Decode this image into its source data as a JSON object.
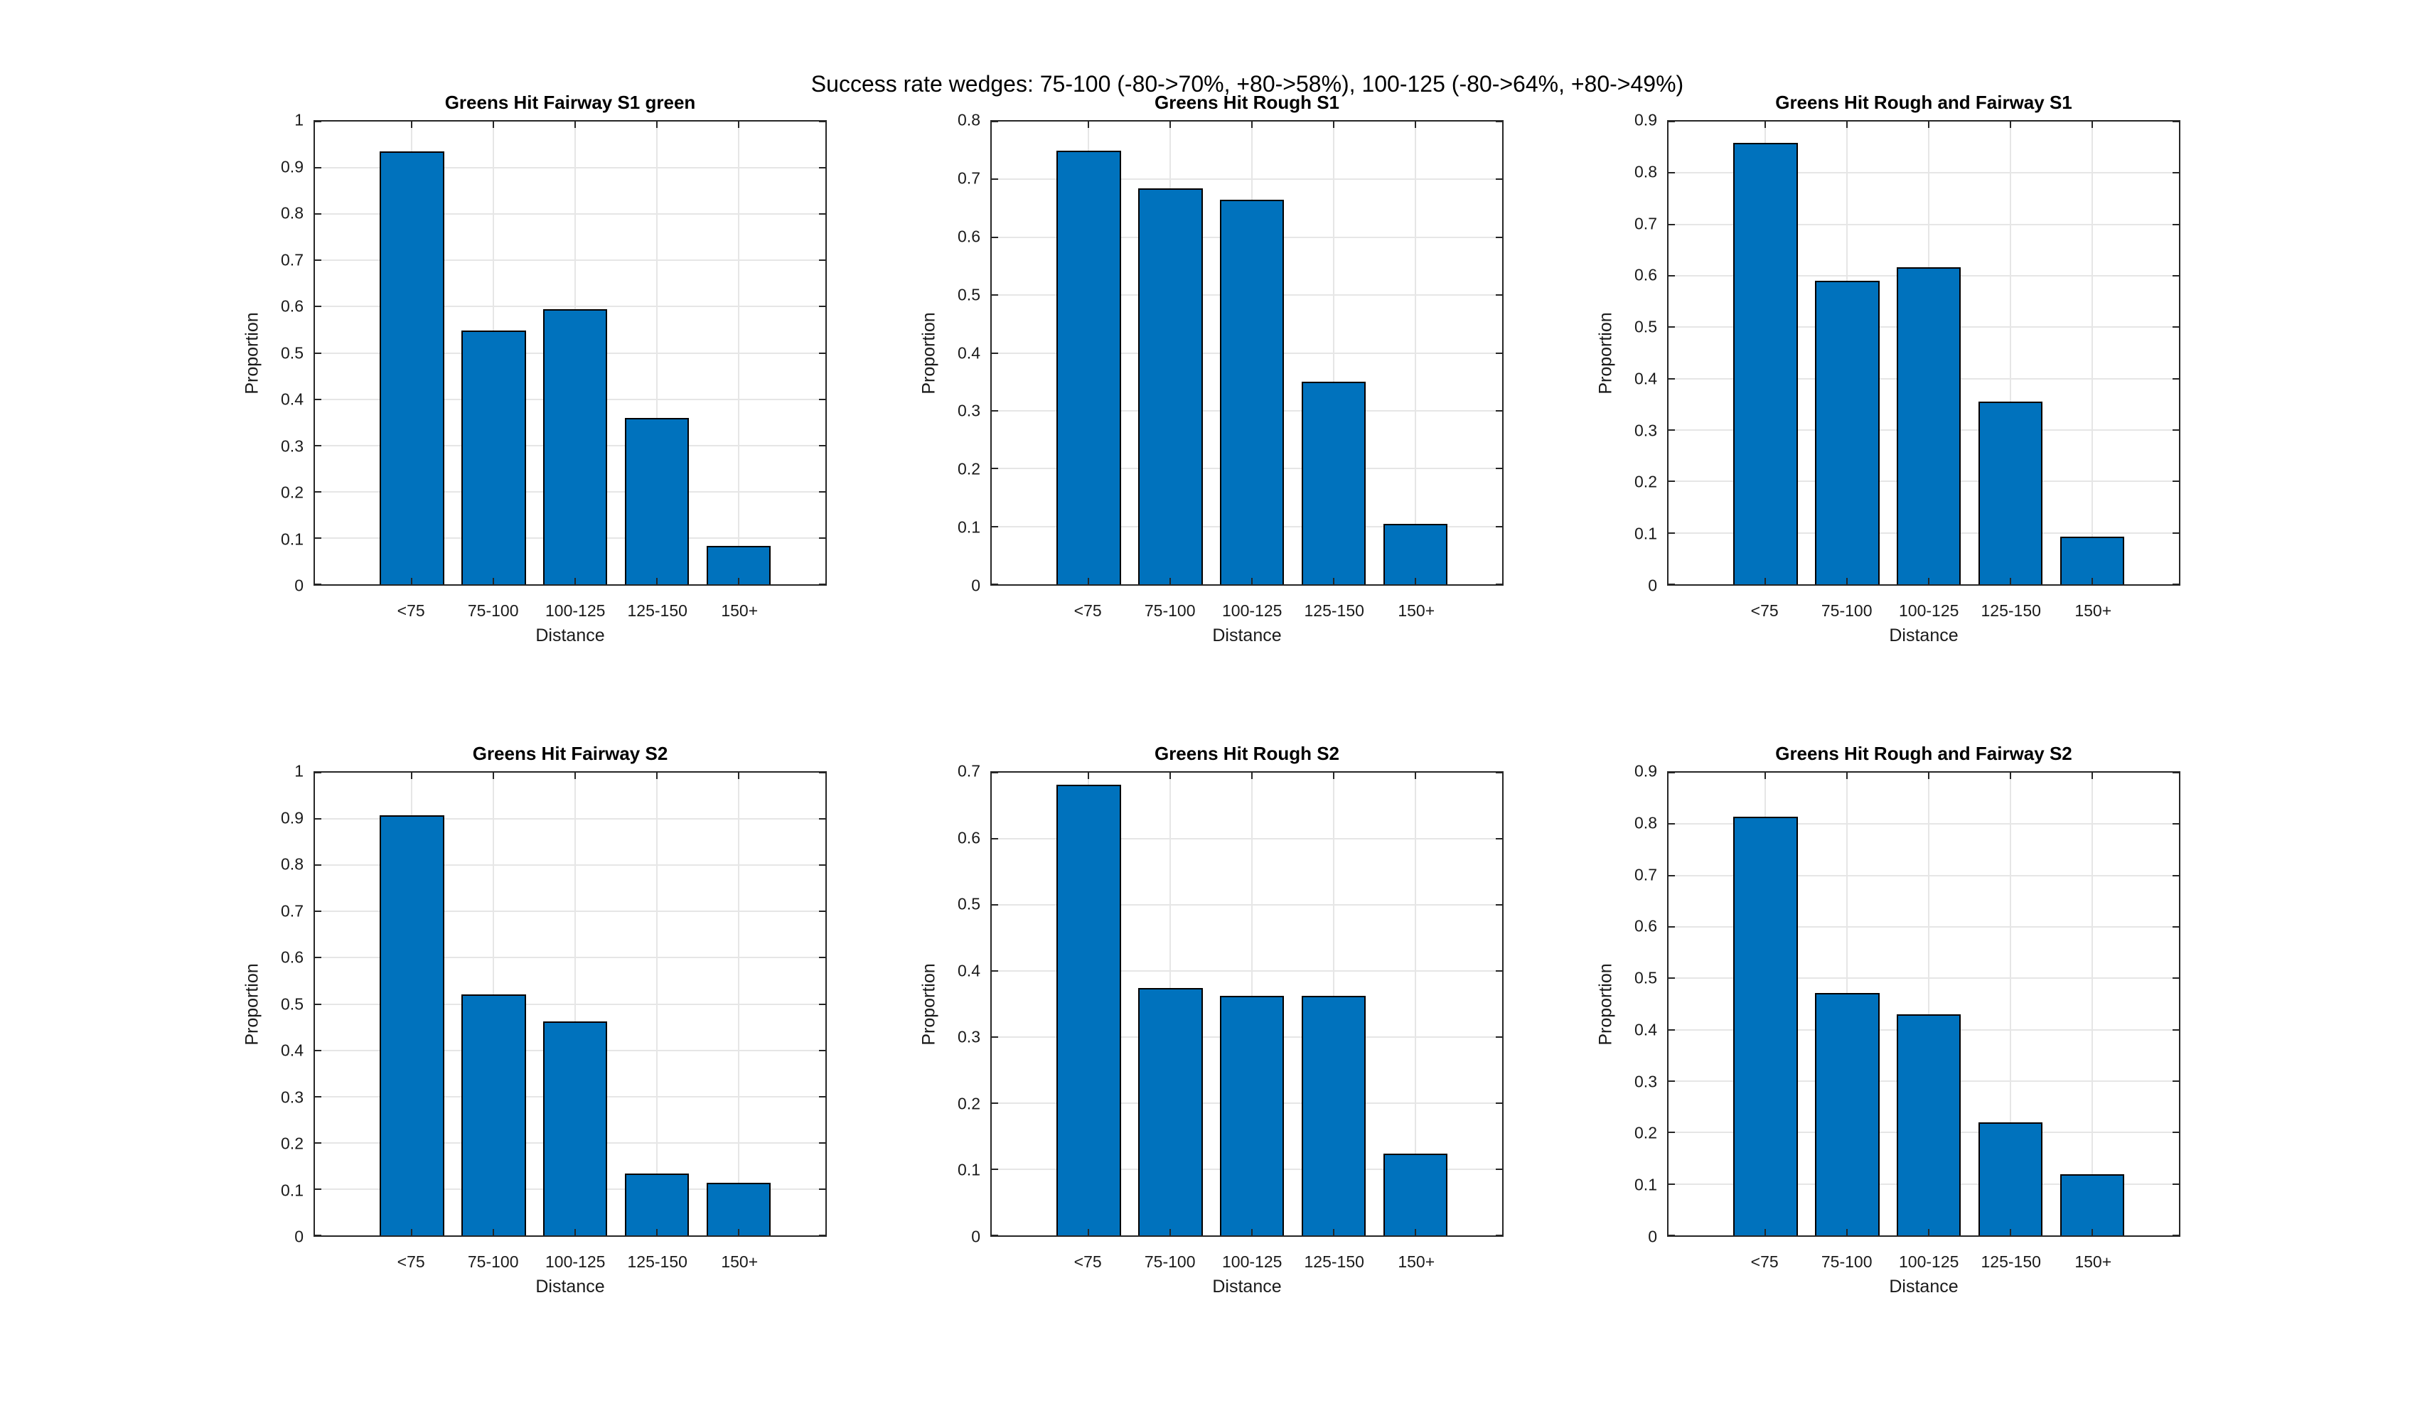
{
  "suptitle": "Success rate wedges: 75-100 (-80->70%, +80->58%), 100-125 (-80->64%, +80->49%)",
  "colors": {
    "bar_fill": "#0072BD",
    "bar_edge": "#000000",
    "grid": "#e6e6e6",
    "axis": "#262626",
    "background": "#ffffff"
  },
  "chart_data": [
    {
      "type": "bar",
      "title": "Greens Hit Fairway S1 green",
      "categories": [
        "<75",
        "75-100",
        "100-125",
        "125-150",
        "150+"
      ],
      "values": [
        0.935,
        0.548,
        0.595,
        0.36,
        0.083
      ],
      "xlabel": "Distance",
      "ylabel": "Proportion",
      "ylim": [
        0,
        1
      ],
      "yticks": [
        "0",
        "0.1",
        "0.2",
        "0.3",
        "0.4",
        "0.5",
        "0.6",
        "0.7",
        "0.8",
        "0.9",
        "1"
      ],
      "grid": "on",
      "legend": "none"
    },
    {
      "type": "bar",
      "title": "Greens Hit Rough S1",
      "categories": [
        "<75",
        "75-100",
        "100-125",
        "125-150",
        "150+"
      ],
      "values": [
        0.75,
        0.684,
        0.665,
        0.35,
        0.104
      ],
      "xlabel": "Distance",
      "ylabel": "Proportion",
      "ylim": [
        0,
        0.8
      ],
      "yticks": [
        "0",
        "0.1",
        "0.2",
        "0.3",
        "0.4",
        "0.5",
        "0.6",
        "0.7",
        "0.8"
      ],
      "grid": "on",
      "legend": "none"
    },
    {
      "type": "bar",
      "title": "Greens Hit Rough and Fairway S1",
      "categories": [
        "<75",
        "75-100",
        "100-125",
        "125-150",
        "150+"
      ],
      "values": [
        0.859,
        0.59,
        0.616,
        0.355,
        0.093
      ],
      "xlabel": "Distance",
      "ylabel": "Proportion",
      "ylim": [
        0,
        0.9
      ],
      "yticks": [
        "0",
        "0.1",
        "0.2",
        "0.3",
        "0.4",
        "0.5",
        "0.6",
        "0.7",
        "0.8",
        "0.9"
      ],
      "grid": "on",
      "legend": "none"
    },
    {
      "type": "bar",
      "title": "Greens Hit Fairway S2",
      "categories": [
        "<75",
        "75-100",
        "100-125",
        "125-150",
        "150+"
      ],
      "values": [
        0.908,
        0.52,
        0.463,
        0.133,
        0.114
      ],
      "xlabel": "Distance",
      "ylabel": "Proportion",
      "ylim": [
        0,
        1
      ],
      "yticks": [
        "0",
        "0.1",
        "0.2",
        "0.3",
        "0.4",
        "0.5",
        "0.6",
        "0.7",
        "0.8",
        "0.9",
        "1"
      ],
      "grid": "on",
      "legend": "none"
    },
    {
      "type": "bar",
      "title": "Greens Hit Rough S2",
      "categories": [
        "<75",
        "75-100",
        "100-125",
        "125-150",
        "150+"
      ],
      "values": [
        0.682,
        0.374,
        0.362,
        0.362,
        0.124
      ],
      "xlabel": "Distance",
      "ylabel": "Proportion",
      "ylim": [
        0,
        0.7
      ],
      "yticks": [
        "0",
        "0.1",
        "0.2",
        "0.3",
        "0.4",
        "0.5",
        "0.6",
        "0.7"
      ],
      "grid": "on",
      "legend": "none"
    },
    {
      "type": "bar",
      "title": "Greens Hit Rough and Fairway S2",
      "categories": [
        "<75",
        "75-100",
        "100-125",
        "125-150",
        "150+"
      ],
      "values": [
        0.814,
        0.472,
        0.43,
        0.22,
        0.119
      ],
      "xlabel": "Distance",
      "ylabel": "Proportion",
      "ylim": [
        0,
        0.9
      ],
      "yticks": [
        "0",
        "0.1",
        "0.2",
        "0.3",
        "0.4",
        "0.5",
        "0.6",
        "0.7",
        "0.8",
        "0.9"
      ],
      "grid": "on",
      "legend": "none"
    }
  ]
}
